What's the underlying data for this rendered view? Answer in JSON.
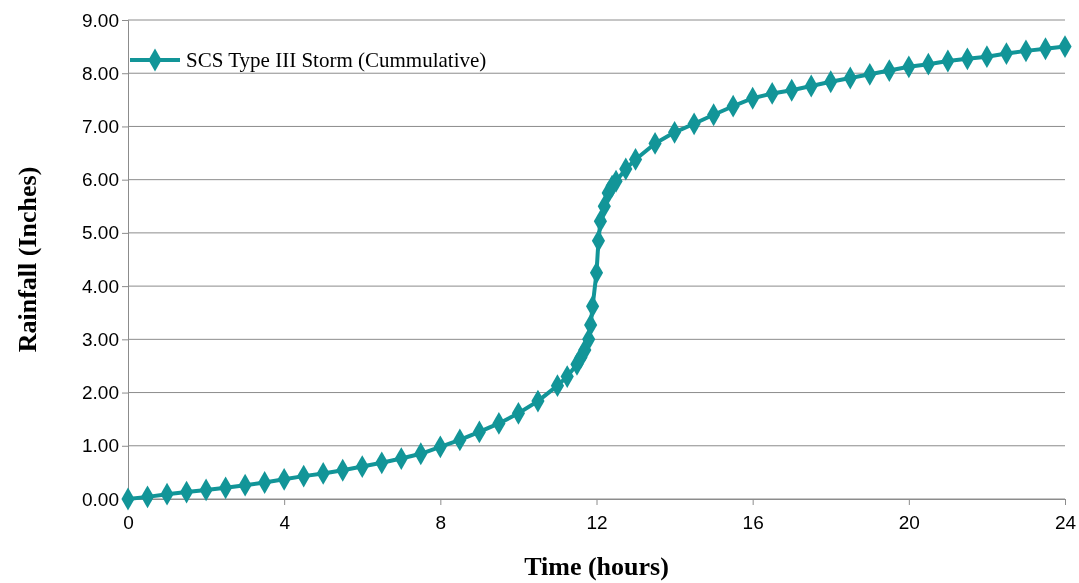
{
  "chart_data": {
    "type": "line",
    "xlabel": "Time (hours)",
    "ylabel": "Rainfall (Inches)",
    "xlim": [
      0,
      24
    ],
    "xticks": [
      0,
      4,
      8,
      12,
      16,
      20,
      24
    ],
    "ylim": [
      0,
      9
    ],
    "yticks": [
      {
        "value": 0,
        "label": "0.00"
      },
      {
        "value": 1,
        "label": "1.00"
      },
      {
        "value": 2,
        "label": "2.00"
      },
      {
        "value": 3,
        "label": "3.00"
      },
      {
        "value": 4,
        "label": "4.00"
      },
      {
        "value": 5,
        "label": "5.00"
      },
      {
        "value": 6,
        "label": "6.00"
      },
      {
        "value": 7,
        "label": "7.00"
      },
      {
        "value": 8,
        "label": "8.00"
      },
      {
        "value": 9,
        "label": "9.00"
      }
    ],
    "grid": "y",
    "legend": "top left",
    "marker": "diamond",
    "line_style": "solid",
    "series": [
      {
        "name": "SCS Type III Storm (Cummulative)",
        "color": "#129598",
        "x": [
          0,
          0.5,
          1,
          1.5,
          2,
          2.5,
          3,
          3.5,
          4,
          4.5,
          5,
          5.5,
          6,
          6.5,
          7,
          7.5,
          8,
          8.5,
          9,
          9.5,
          10,
          10.5,
          11,
          11.25,
          11.5,
          11.6,
          11.7,
          11.8,
          11.85,
          11.9,
          12,
          12.05,
          12.1,
          12.2,
          12.3,
          12.4,
          12.5,
          12.75,
          13,
          13.5,
          14,
          14.5,
          15,
          15.5,
          16,
          16.5,
          17,
          17.5,
          18,
          18.5,
          19,
          19.5,
          20,
          20.5,
          21,
          21.5,
          22,
          22.5,
          23,
          23.5,
          24
        ],
        "values": [
          0,
          0.04,
          0.09,
          0.13,
          0.17,
          0.21,
          0.26,
          0.31,
          0.37,
          0.43,
          0.48,
          0.54,
          0.61,
          0.68,
          0.76,
          0.85,
          0.98,
          1.11,
          1.26,
          1.42,
          1.61,
          1.84,
          2.13,
          2.3,
          2.53,
          2.66,
          2.8,
          3.0,
          3.27,
          3.62,
          4.25,
          4.85,
          5.22,
          5.5,
          5.75,
          5.88,
          5.97,
          6.2,
          6.38,
          6.68,
          6.89,
          7.05,
          7.22,
          7.38,
          7.53,
          7.62,
          7.68,
          7.76,
          7.84,
          7.91,
          7.98,
          8.05,
          8.12,
          8.17,
          8.23,
          8.27,
          8.31,
          8.37,
          8.42,
          8.46,
          8.5
        ]
      }
    ]
  }
}
